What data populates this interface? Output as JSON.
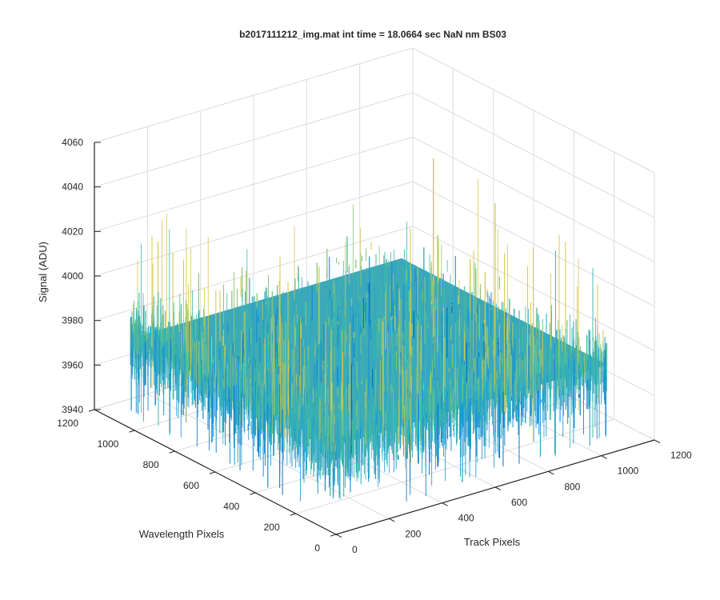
{
  "chart_data": {
    "type": "surface",
    "title": "b2017111212_img.mat int time = 18.0664 sec  NaN nm BS03",
    "xlabel": "Track Pixels",
    "ylabel": "Wavelength Pixels",
    "zlabel": "Signal (ADU)",
    "xlim": [
      0,
      1200
    ],
    "ylim": [
      0,
      1200
    ],
    "zlim": [
      3940,
      4060
    ],
    "xticks": [
      "0",
      "200",
      "400",
      "600",
      "800",
      "1000",
      "1200"
    ],
    "yticks": [
      "0",
      "200",
      "400",
      "600",
      "800",
      "1000",
      "1200"
    ],
    "zticks": [
      "3940",
      "3960",
      "3980",
      "4000",
      "4020",
      "4040",
      "4060"
    ],
    "grid": true,
    "surface": {
      "x_range": [
        0,
        1024
      ],
      "y_range": [
        0,
        1024
      ],
      "z_mean": 3980,
      "z_typical_range": [
        3960,
        4000
      ],
      "z_max": 4045,
      "z_min": 3945
    },
    "colormap": [
      "#0072BD",
      "#1A8FD0",
      "#2BA7C9",
      "#3DB8A8",
      "#8CC47C",
      "#D4C84A"
    ]
  }
}
